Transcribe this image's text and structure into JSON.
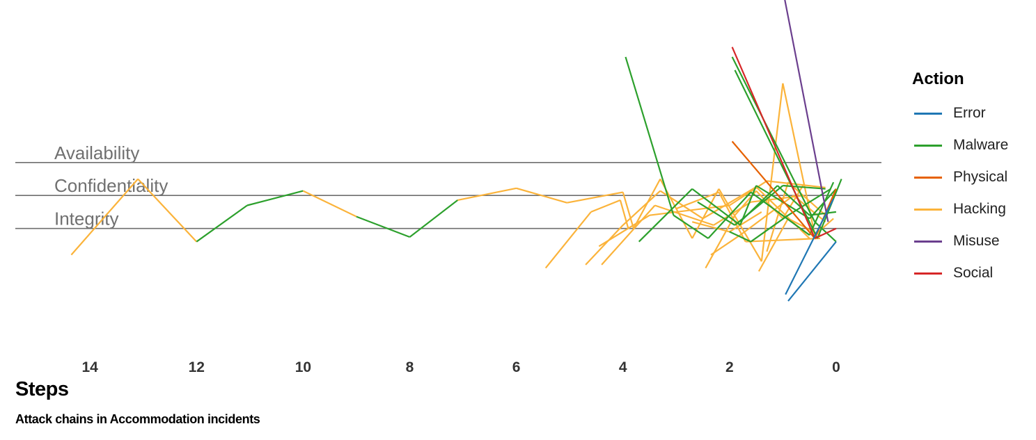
{
  "chart_data": {
    "type": "line",
    "title": "",
    "xlabel": "Steps",
    "caption": "Attack chains in Accommodation incidents",
    "x_reversed": true,
    "xlim": [
      15.4,
      -0.85
    ],
    "ylim": [
      -2.2,
      2.7
    ],
    "x_ticks": [
      14,
      12,
      10,
      8,
      6,
      4,
      2,
      0
    ],
    "grid": false,
    "band_lines": [
      {
        "label": "Availability",
        "y": 0.5
      },
      {
        "label": "Confidentiality",
        "y": 0
      },
      {
        "label": "Integrity",
        "y": -0.5
      }
    ],
    "legend": {
      "title": "Action",
      "placement": "right",
      "items": [
        {
          "name": "Error",
          "color": "#1f77b4"
        },
        {
          "name": "Malware",
          "color": "#2ca02c"
        },
        {
          "name": "Physical",
          "color": "#e66100"
        },
        {
          "name": "Hacking",
          "color": "#fbb33a"
        },
        {
          "name": "Misuse",
          "color": "#6b3f8e"
        },
        {
          "name": "Social",
          "color": "#d62728"
        }
      ]
    },
    "series": [
      {
        "action": "Hacking",
        "segment": true,
        "x": [
          14.35,
          13.1
        ],
        "y": [
          -0.9,
          0.25
        ]
      },
      {
        "action": "Hacking",
        "segment": true,
        "x": [
          13.1,
          12.0
        ],
        "y": [
          0.25,
          -0.7
        ]
      },
      {
        "action": "Malware",
        "segment": true,
        "x": [
          12.0,
          11.05
        ],
        "y": [
          -0.7,
          -0.15
        ]
      },
      {
        "action": "Malware",
        "segment": true,
        "x": [
          11.05,
          10.0
        ],
        "y": [
          -0.15,
          0.07
        ]
      },
      {
        "action": "Hacking",
        "segment": true,
        "x": [
          10.0,
          9.0
        ],
        "y": [
          0.07,
          -0.32
        ]
      },
      {
        "action": "Malware",
        "segment": true,
        "x": [
          9.0,
          8.0
        ],
        "y": [
          -0.32,
          -0.63
        ]
      },
      {
        "action": "Malware",
        "segment": true,
        "x": [
          8.0,
          7.1
        ],
        "y": [
          -0.63,
          -0.07
        ]
      },
      {
        "action": "Hacking",
        "segment": true,
        "x": [
          7.1,
          6.0
        ],
        "y": [
          -0.07,
          0.11
        ]
      },
      {
        "action": "Hacking",
        "segment": true,
        "x": [
          6.0,
          5.05
        ],
        "y": [
          0.11,
          -0.11
        ]
      },
      {
        "action": "Hacking",
        "segment": true,
        "x": [
          5.05,
          4.0
        ],
        "y": [
          -0.11,
          0.05
        ]
      },
      {
        "action": "Hacking",
        "segment": true,
        "x": [
          4.0,
          3.8
        ],
        "y": [
          0.05,
          -0.5
        ]
      },
      {
        "action": "Hacking",
        "segment": true,
        "x": [
          3.8,
          3.3
        ],
        "y": [
          -0.5,
          0.25
        ]
      },
      {
        "action": "Hacking",
        "segment": true,
        "x": [
          3.3,
          2.7
        ],
        "y": [
          0.25,
          -0.65
        ]
      },
      {
        "action": "Hacking",
        "segment": true,
        "x": [
          2.7,
          2.2
        ],
        "y": [
          -0.65,
          0.1
        ]
      },
      {
        "action": "Hacking",
        "segment": true,
        "x": [
          2.2,
          1.4
        ],
        "y": [
          0.1,
          -1.0
        ]
      },
      {
        "action": "Hacking",
        "segment": true,
        "x": [
          1.4,
          1.0
        ],
        "y": [
          -1.0,
          1.7
        ]
      },
      {
        "action": "Hacking",
        "segment": true,
        "x": [
          1.0,
          0.4
        ],
        "y": [
          1.7,
          -0.6
        ]
      },
      {
        "action": "Hacking",
        "segment": true,
        "x": [
          0.4,
          0.05
        ],
        "y": [
          -0.6,
          -0.35
        ]
      },
      {
        "action": "Hacking",
        "segment": true,
        "x": [
          5.45,
          4.6
        ],
        "y": [
          -1.1,
          -0.25
        ]
      },
      {
        "action": "Hacking",
        "segment": true,
        "x": [
          4.6,
          4.05
        ],
        "y": [
          -0.25,
          -0.07
        ]
      },
      {
        "action": "Hacking",
        "segment": true,
        "x": [
          4.05,
          3.9
        ],
        "y": [
          -0.07,
          -0.5
        ]
      },
      {
        "action": "Hacking",
        "segment": true,
        "x": [
          4.7,
          4.0
        ],
        "y": [
          -1.05,
          -0.45
        ]
      },
      {
        "action": "Hacking",
        "segment": true,
        "x": [
          4.0,
          3.3
        ],
        "y": [
          -0.45,
          0.07
        ]
      },
      {
        "action": "Hacking",
        "segment": true,
        "x": [
          3.3,
          2.5
        ],
        "y": [
          0.07,
          -0.35
        ]
      },
      {
        "action": "Hacking",
        "segment": true,
        "x": [
          2.5,
          1.5
        ],
        "y": [
          -0.35,
          0.13
        ]
      },
      {
        "action": "Hacking",
        "segment": true,
        "x": [
          1.5,
          0.5
        ],
        "y": [
          0.13,
          -0.65
        ]
      },
      {
        "action": "Hacking",
        "segment": true,
        "x": [
          4.45,
          3.5
        ],
        "y": [
          -0.77,
          -0.3
        ]
      },
      {
        "action": "Hacking",
        "segment": true,
        "x": [
          3.5,
          2.0
        ],
        "y": [
          -0.3,
          -0.15
        ]
      },
      {
        "action": "Hacking",
        "segment": true,
        "x": [
          2.0,
          1.3
        ],
        "y": [
          -0.15,
          0.22
        ]
      },
      {
        "action": "Hacking",
        "segment": true,
        "x": [
          1.3,
          0.2
        ],
        "y": [
          0.22,
          0.12
        ]
      },
      {
        "action": "Hacking",
        "segment": true,
        "x": [
          4.4,
          3.4
        ],
        "y": [
          -1.05,
          -0.15
        ]
      },
      {
        "action": "Hacking",
        "segment": true,
        "x": [
          3.4,
          2.3
        ],
        "y": [
          -0.15,
          -0.45
        ]
      },
      {
        "action": "Hacking",
        "segment": true,
        "x": [
          2.3,
          1.6
        ],
        "y": [
          -0.45,
          -0.1
        ]
      },
      {
        "action": "Hacking",
        "segment": true,
        "x": [
          1.6,
          0.6
        ],
        "y": [
          -0.1,
          0.0
        ]
      },
      {
        "action": "Hacking",
        "segment": true,
        "x": [
          2.45,
          1.9
        ],
        "y": [
          -1.1,
          -0.3
        ]
      },
      {
        "action": "Hacking",
        "segment": true,
        "x": [
          1.9,
          1.5
        ],
        "y": [
          -0.3,
          0.07
        ]
      },
      {
        "action": "Hacking",
        "segment": true,
        "x": [
          1.5,
          1.0
        ],
        "y": [
          0.07,
          -0.35
        ]
      },
      {
        "action": "Hacking",
        "segment": true,
        "x": [
          1.0,
          0.6
        ],
        "y": [
          -0.35,
          0.18
        ]
      },
      {
        "action": "Hacking",
        "segment": true,
        "x": [
          2.7,
          2.0
        ],
        "y": [
          -0.4,
          -0.55
        ]
      },
      {
        "action": "Hacking",
        "segment": true,
        "x": [
          2.0,
          1.4
        ],
        "y": [
          -0.55,
          -0.25
        ]
      },
      {
        "action": "Hacking",
        "segment": true,
        "x": [
          1.45,
          0.9
        ],
        "y": [
          -1.15,
          -0.35
        ]
      },
      {
        "action": "Hacking",
        "segment": true,
        "x": [
          0.9,
          0.3
        ],
        "y": [
          -0.35,
          -0.6
        ]
      },
      {
        "action": "Hacking",
        "segment": true,
        "x": [
          2.35,
          1.8
        ],
        "y": [
          -0.9,
          -0.6
        ]
      },
      {
        "action": "Hacking",
        "segment": true,
        "x": [
          1.8,
          0.8
        ],
        "y": [
          -0.6,
          0.0
        ]
      },
      {
        "action": "Hacking",
        "segment": true,
        "x": [
          0.8,
          0.2
        ],
        "y": [
          0.0,
          -0.4
        ]
      },
      {
        "action": "Hacking",
        "segment": true,
        "x": [
          3.0,
          2.2
        ],
        "y": [
          -0.2,
          0.05
        ]
      },
      {
        "action": "Hacking",
        "segment": true,
        "x": [
          2.2,
          1.7
        ],
        "y": [
          0.05,
          -0.7
        ]
      },
      {
        "action": "Hacking",
        "segment": true,
        "x": [
          1.7,
          0.3
        ],
        "y": [
          -0.7,
          -0.65
        ]
      },
      {
        "action": "Hacking",
        "segment": true,
        "x": [
          1.3,
          0.9
        ],
        "y": [
          -0.85,
          0.2
        ]
      },
      {
        "action": "Hacking",
        "segment": true,
        "x": [
          0.9,
          0.2
        ],
        "y": [
          0.2,
          -0.3
        ]
      },
      {
        "action": "Malware",
        "segment": true,
        "x": [
          3.95,
          3.05
        ],
        "y": [
          2.1,
          -0.3
        ]
      },
      {
        "action": "Malware",
        "segment": true,
        "x": [
          3.05,
          2.4
        ],
        "y": [
          -0.3,
          -0.65
        ]
      },
      {
        "action": "Malware",
        "segment": true,
        "x": [
          2.4,
          1.6
        ],
        "y": [
          -0.65,
          0.05
        ]
      },
      {
        "action": "Malware",
        "segment": true,
        "x": [
          1.6,
          0.5
        ],
        "y": [
          0.05,
          -0.6
        ]
      },
      {
        "action": "Malware",
        "segment": true,
        "x": [
          0.5,
          0.05
        ],
        "y": [
          -0.6,
          0.2
        ]
      },
      {
        "action": "Malware",
        "segment": true,
        "x": [
          3.7,
          2.7
        ],
        "y": [
          -0.7,
          0.1
        ]
      },
      {
        "action": "Malware",
        "segment": true,
        "x": [
          2.7,
          1.8
        ],
        "y": [
          0.1,
          -0.45
        ]
      },
      {
        "action": "Malware",
        "segment": true,
        "x": [
          1.8,
          1.5
        ],
        "y": [
          -0.45,
          0.15
        ]
      },
      {
        "action": "Malware",
        "segment": true,
        "x": [
          1.5,
          0.5
        ],
        "y": [
          0.15,
          -0.35
        ]
      },
      {
        "action": "Malware",
        "segment": true,
        "x": [
          0.5,
          0.0
        ],
        "y": [
          -0.35,
          0.1
        ]
      },
      {
        "action": "Malware",
        "segment": true,
        "x": [
          1.95,
          0.4
        ],
        "y": [
          2.1,
          -0.4
        ]
      },
      {
        "action": "Malware",
        "segment": true,
        "x": [
          0.4,
          0.0
        ],
        "y": [
          -0.4,
          -0.7
        ]
      },
      {
        "action": "Malware",
        "segment": true,
        "x": [
          1.9,
          0.35
        ],
        "y": [
          1.9,
          -0.65
        ]
      },
      {
        "action": "Malware",
        "segment": true,
        "x": [
          0.35,
          -0.1
        ],
        "y": [
          -0.65,
          0.25
        ]
      },
      {
        "action": "Malware",
        "segment": true,
        "x": [
          2.6,
          1.9
        ],
        "y": [
          -0.1,
          -0.45
        ]
      },
      {
        "action": "Malware",
        "segment": true,
        "x": [
          1.9,
          1.0
        ],
        "y": [
          -0.45,
          0.15
        ]
      },
      {
        "action": "Malware",
        "segment": true,
        "x": [
          1.0,
          0.2
        ],
        "y": [
          0.15,
          0.1
        ]
      },
      {
        "action": "Malware",
        "segment": true,
        "x": [
          2.0,
          1.6
        ],
        "y": [
          -0.55,
          -0.7
        ]
      },
      {
        "action": "Malware",
        "segment": true,
        "x": [
          1.6,
          0.9
        ],
        "y": [
          -0.7,
          -0.3
        ]
      },
      {
        "action": "Malware",
        "segment": true,
        "x": [
          0.9,
          0.1
        ],
        "y": [
          -0.3,
          0.1
        ]
      },
      {
        "action": "Malware",
        "segment": true,
        "x": [
          1.8,
          1.1
        ],
        "y": [
          -0.4,
          0.15
        ]
      },
      {
        "action": "Malware",
        "segment": true,
        "x": [
          1.1,
          0.5
        ],
        "y": [
          0.15,
          -0.3
        ]
      },
      {
        "action": "Malware",
        "segment": true,
        "x": [
          0.5,
          0.0
        ],
        "y": [
          -0.3,
          -0.25
        ]
      },
      {
        "action": "Physical",
        "segment": true,
        "x": [
          1.95,
          0.4
        ],
        "y": [
          0.82,
          -0.65
        ]
      },
      {
        "action": "Physical",
        "segment": true,
        "x": [
          0.4,
          0.0
        ],
        "y": [
          -0.65,
          0.1
        ]
      },
      {
        "action": "Social",
        "segment": true,
        "x": [
          1.95,
          0.4
        ],
        "y": [
          2.25,
          -0.65
        ]
      },
      {
        "action": "Social",
        "segment": true,
        "x": [
          0.4,
          0.0
        ],
        "y": [
          -0.65,
          -0.5
        ]
      },
      {
        "action": "Misuse",
        "segment": true,
        "x": [
          1.0,
          0.15
        ],
        "y": [
          3.12,
          -0.4
        ]
      },
      {
        "action": "Error",
        "segment": true,
        "x": [
          0.95,
          0.05
        ],
        "y": [
          -1.5,
          -0.05
        ]
      },
      {
        "action": "Error",
        "segment": true,
        "x": [
          0.9,
          0.0
        ],
        "y": [
          -1.6,
          -0.7
        ]
      }
    ]
  }
}
